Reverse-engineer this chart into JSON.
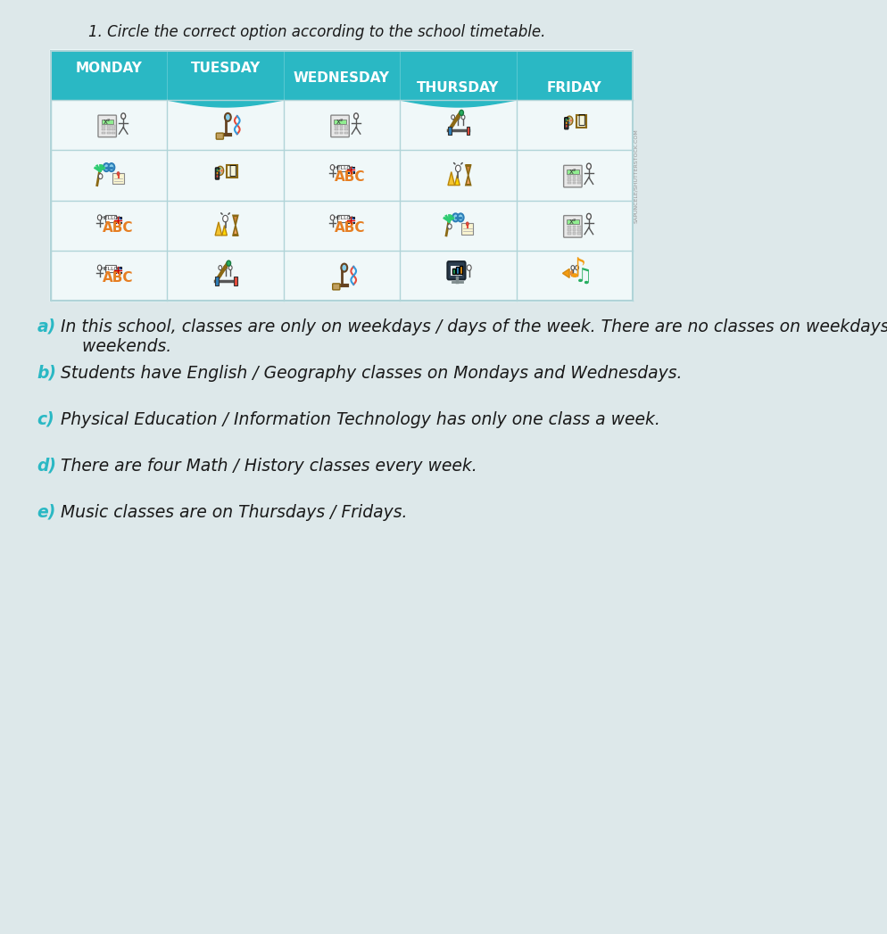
{
  "title": "1. Circle the correct option according to the school timetable.",
  "header_bg": "#2ab8c4",
  "header_text_color": "#ffffff",
  "table_bg": "#e8f4f5",
  "cell_bg": "#f0f8f9",
  "page_bg": "#dde8ea",
  "columns": [
    "MONDAY",
    "TUESDAY",
    "WEDNESDAY",
    "THURSDAY",
    "FRIDAY"
  ],
  "num_rows": 4,
  "grid_line_color": "#b0d4d8",
  "questions": [
    {
      "letter": "a)",
      "letter_color": "#2ab8c4",
      "text": "In this school, classes are only on weekdays / days of the week. There are no classes on weekdays /\n    weekends."
    },
    {
      "letter": "b)",
      "letter_color": "#2ab8c4",
      "text": "Students have English / Geography classes on Mondays and Wednesdays."
    },
    {
      "letter": "c)",
      "letter_color": "#2ab8c4",
      "text": "Physical Education / Information Technology has only one class a week."
    },
    {
      "letter": "d)",
      "letter_color": "#2ab8c4",
      "text": "There are four Math / History classes every week."
    },
    {
      "letter": "e)",
      "letter_color": "#2ab8c4",
      "text": "Music classes are on Thursdays / Fridays."
    }
  ],
  "watermark": "SAPUNCELE/SHUTTERSTOCK.COM",
  "header_font_size": 11,
  "question_font_size": 13.5,
  "title_font_size": 12
}
